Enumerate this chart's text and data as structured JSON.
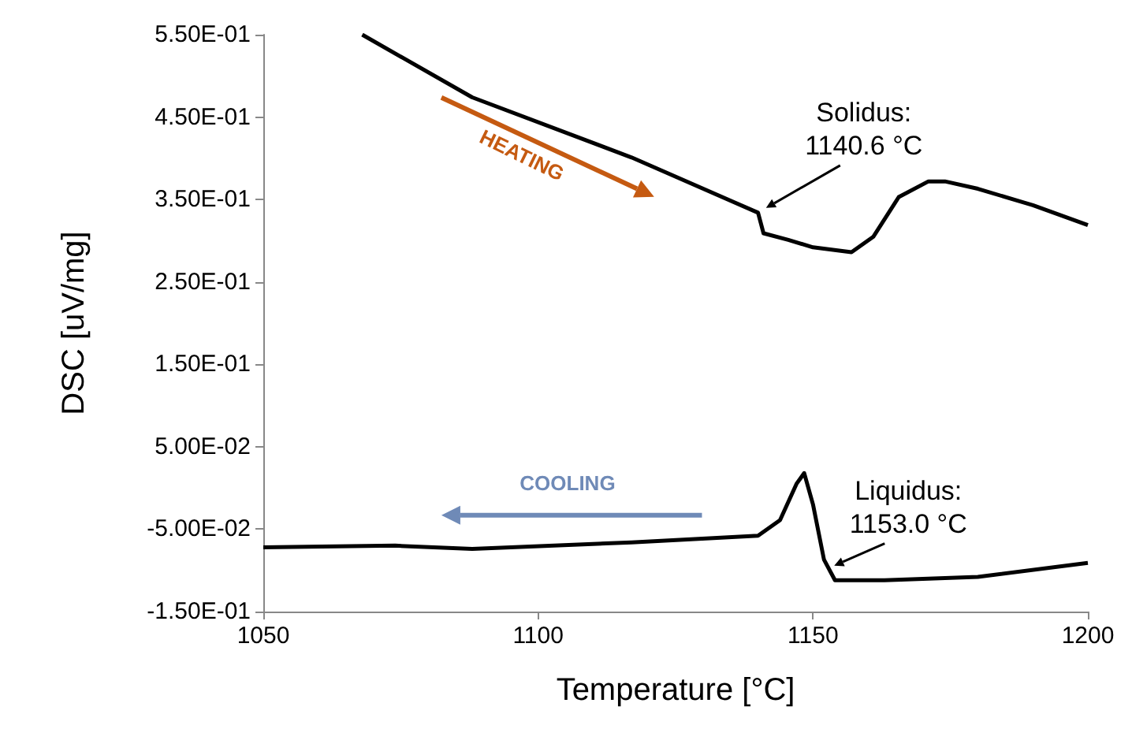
{
  "chart_data": {
    "type": "line",
    "xlabel": "Temperature [°C]",
    "ylabel": "DSC [uV/mg]",
    "xlim": [
      1050,
      1200
    ],
    "xticks": [
      1050,
      1100,
      1150,
      1200
    ],
    "ylim": [
      -0.15,
      0.55
    ],
    "yticks": [
      {
        "value": -0.15,
        "label": "-1.50E-01"
      },
      {
        "value": -0.05,
        "label": "-5.00E-02"
      },
      {
        "value": 0.05,
        "label": "5.00E-02"
      },
      {
        "value": 0.15,
        "label": "1.50E-01"
      },
      {
        "value": 0.25,
        "label": "2.50E-01"
      },
      {
        "value": 0.35,
        "label": "3.50E-01"
      },
      {
        "value": 0.45,
        "label": "4.50E-01"
      },
      {
        "value": 0.55,
        "label": "5.50E-01"
      }
    ],
    "grid": false,
    "marker": "none",
    "line_style": "solid",
    "series": [
      {
        "color": "#000000",
        "x": [
          1068,
          1088,
          1117,
          1140,
          1141,
          1145.5,
          1150,
          1157,
          1161,
          1165.6,
          1171,
          1174,
          1180,
          1190,
          1200
        ],
        "values": [
          0.55,
          0.474,
          0.401,
          0.334,
          0.309,
          0.301,
          0.292,
          0.286,
          0.305,
          0.353,
          0.372,
          0.372,
          0.363,
          0.343,
          0.319
        ]
      },
      {
        "color": "#000000",
        "x": [
          1050,
          1074,
          1088,
          1117,
          1140,
          1144,
          1147,
          1148.4,
          1150,
          1152,
          1154,
          1163,
          1180,
          1200
        ],
        "values": [
          -0.072,
          -0.07,
          -0.074,
          -0.066,
          -0.058,
          -0.039,
          0.005,
          0.018,
          -0.02,
          -0.087,
          -0.112,
          -0.112,
          -0.108,
          -0.091
        ]
      }
    ],
    "annotations": [
      {
        "text": "Solidus:\n1140.6 °C",
        "x": 1140.6,
        "y": 0.334
      },
      {
        "text": "Liquidus:\n1153.0 °C",
        "x": 1153.0,
        "y": -0.1
      },
      "HEATING",
      "COOLING"
    ]
  }
}
